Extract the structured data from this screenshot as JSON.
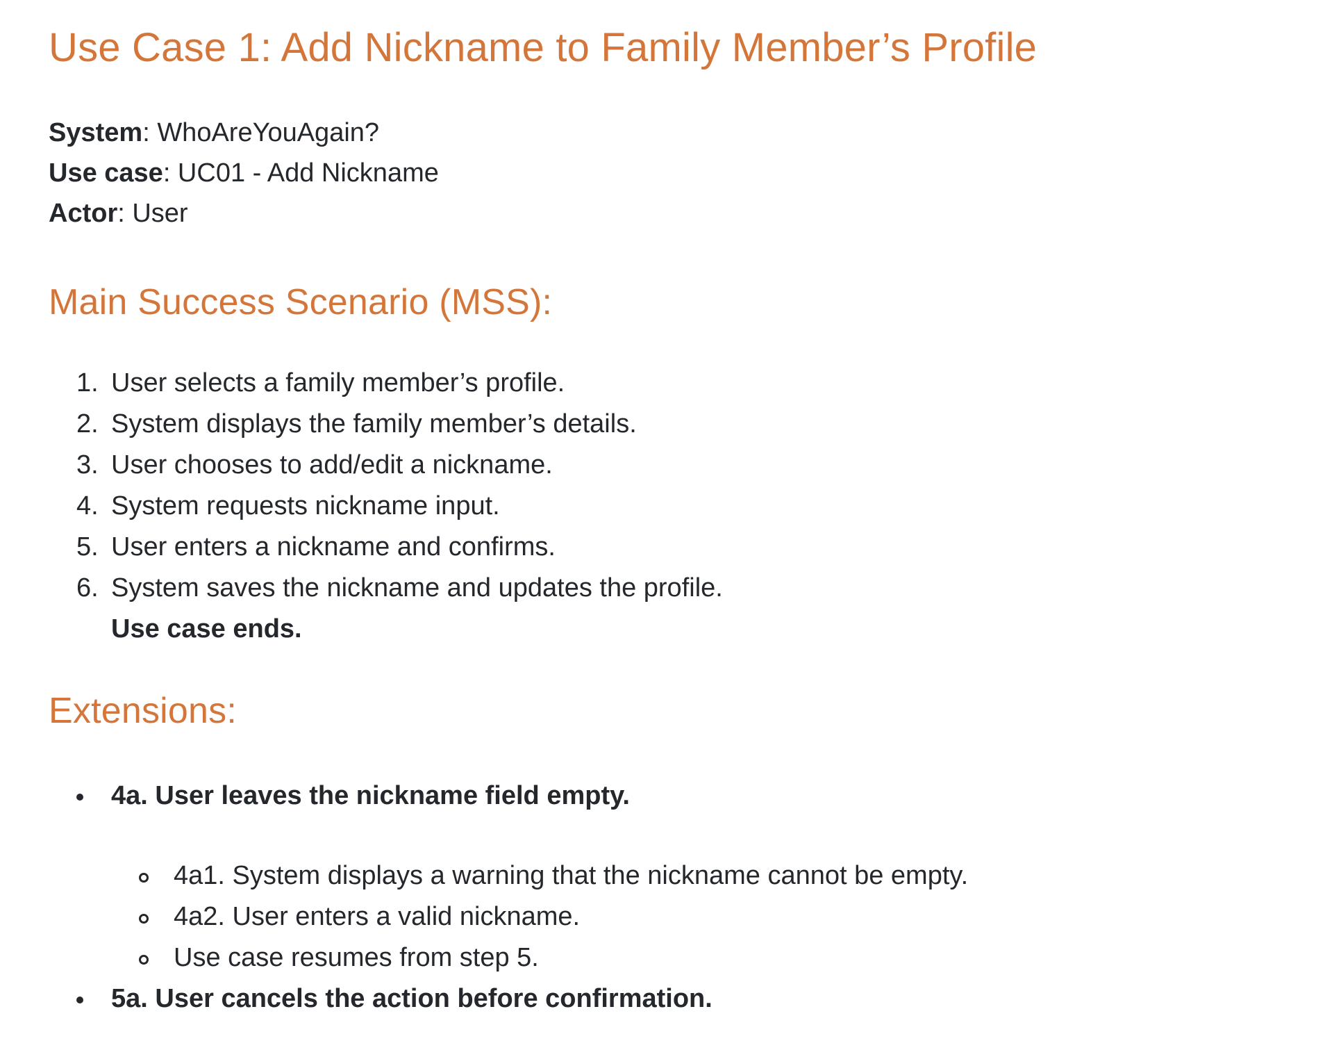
{
  "title": "Use Case 1: Add Nickname to Family Member’s Profile",
  "meta": [
    {
      "label": "System",
      "value": ": WhoAreYouAgain?"
    },
    {
      "label": "Use case",
      "value": ": UC01 - Add Nickname"
    },
    {
      "label": "Actor",
      "value": ": User"
    }
  ],
  "mss": {
    "heading": "Main Success Scenario (MSS):",
    "steps": [
      {
        "num": "1.",
        "text": "User selects a family member’s profile."
      },
      {
        "num": "2.",
        "text": "System displays the family member’s details."
      },
      {
        "num": "3.",
        "text": "User chooses to add/edit a nickname."
      },
      {
        "num": "4.",
        "text": "System requests nickname input."
      },
      {
        "num": "5.",
        "text": "User enters a nickname and confirms."
      },
      {
        "num": "6.",
        "text": "System saves the nickname and updates the profile."
      }
    ],
    "ends": "Use case ends."
  },
  "extensions": {
    "heading": "Extensions:",
    "items": [
      {
        "title": "4a. User leaves the nickname field empty.",
        "sub": [
          "4a1. System displays a warning that the nickname cannot be empty.",
          "4a2. User enters a valid nickname.",
          "Use case resumes from step 5."
        ]
      },
      {
        "title": "5a. User cancels the action before confirmation."
      }
    ]
  }
}
